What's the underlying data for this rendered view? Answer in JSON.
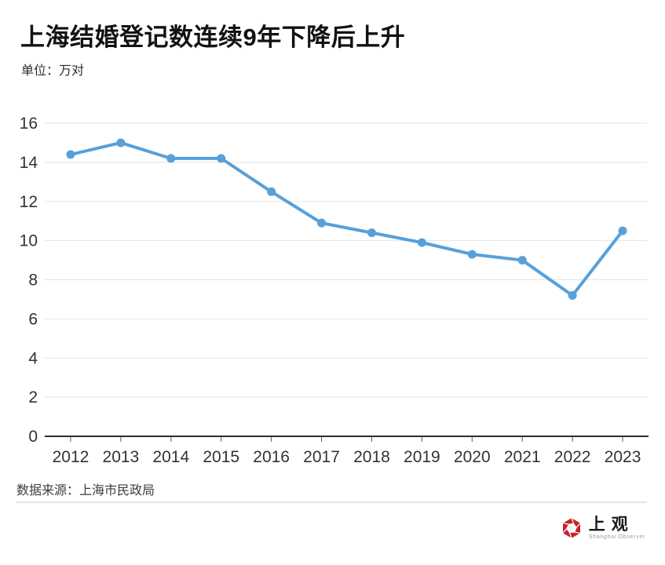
{
  "header": {
    "title": "上海结婚登记数连续9年下降后上升",
    "subtitle": "单位：万对"
  },
  "footer": {
    "source": "数据来源：上海市民政局",
    "logo_text": "上观",
    "logo_subtext": "Shanghai Observer"
  },
  "colors": {
    "line": "#58A0D9",
    "grid": "#e4e4e4",
    "axis": "#303030",
    "tick": "#5a5a5a",
    "text": "#333333",
    "logo_red": "#C4242B"
  },
  "chart_data": {
    "type": "line",
    "title": "上海结婚登记数连续9年下降后上升",
    "unit_label": "单位：万对",
    "source": "数据来源：上海市民政局",
    "categories": [
      "2012",
      "2013",
      "2014",
      "2015",
      "2016",
      "2017",
      "2018",
      "2019",
      "2020",
      "2021",
      "2022",
      "2023"
    ],
    "values": [
      14.4,
      15.0,
      14.2,
      14.2,
      12.5,
      10.9,
      10.4,
      9.9,
      9.3,
      9.0,
      7.2,
      10.5
    ],
    "xlabel": "",
    "ylabel": "",
    "ylim": [
      0,
      16
    ],
    "ytick_step": 2,
    "grid": true,
    "legend": "none",
    "marker": "circle"
  }
}
